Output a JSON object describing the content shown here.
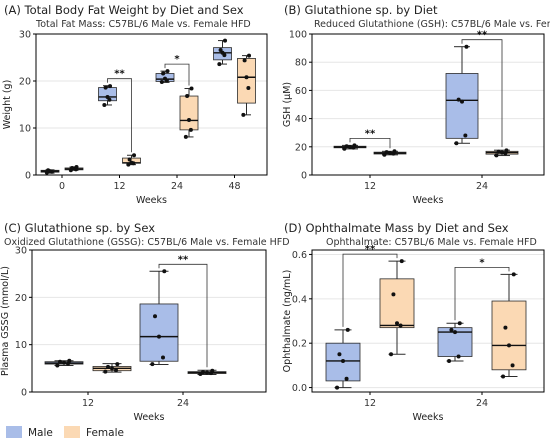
{
  "colors": {
    "male": "#a9bde8",
    "male_edge": "#2b2b2b",
    "female": "#fbd9b4",
    "female_edge": "#2b2b2b"
  },
  "legend": {
    "position": "bottom-left",
    "items": [
      {
        "label": "Male",
        "color": "#a9bde8"
      },
      {
        "label": "Female",
        "color": "#fbd9b4"
      }
    ]
  },
  "chart_data": [
    {
      "type": "box",
      "title": "(A) Total Body Fat Weight by Diet and Sex",
      "subtitle": "Total Fat Mass: C57BL/6 Male vs. Female HFD",
      "xlabel": "Weeks",
      "ylabel": "Weight (g)",
      "categories": [
        "0",
        "12",
        "24",
        "48"
      ],
      "ylim": [
        0,
        30
      ],
      "yticks": [
        0,
        10,
        20,
        30
      ],
      "series": [
        {
          "name": "Male",
          "boxes": [
            {
              "min": 0.4,
              "q1": 0.6,
              "median": 0.8,
              "q3": 1.0,
              "max": 1.1,
              "points": [
                0.5,
                0.7,
                0.8,
                1.0
              ]
            },
            {
              "min": 14.9,
              "q1": 15.8,
              "median": 16.6,
              "q3": 18.6,
              "max": 19.0,
              "points": [
                14.9,
                16.0,
                16.6,
                18.6,
                18.9
              ]
            },
            {
              "min": 19.7,
              "q1": 19.9,
              "median": 20.4,
              "q3": 21.6,
              "max": 22.1,
              "points": [
                19.8,
                20.1,
                20.5,
                21.6,
                22.1
              ]
            },
            {
              "min": 23.6,
              "q1": 24.5,
              "median": 26.0,
              "q3": 27.1,
              "max": 28.6,
              "points": [
                23.6,
                25.5,
                26.0,
                26.6,
                28.6
              ]
            }
          ]
        },
        {
          "name": "Female",
          "boxes": [
            {
              "min": 1.0,
              "q1": 1.1,
              "median": 1.3,
              "q3": 1.5,
              "max": 1.7,
              "points": [
                1.0,
                1.2,
                1.4,
                1.5,
                1.7
              ]
            },
            {
              "min": 2.2,
              "q1": 2.5,
              "median": 2.6,
              "q3": 3.6,
              "max": 4.2,
              "points": [
                2.2,
                2.5,
                2.6,
                3.3,
                4.2
              ]
            },
            {
              "min": 8.1,
              "q1": 9.6,
              "median": 11.6,
              "q3": 16.8,
              "max": 18.4,
              "points": [
                8.1,
                9.6,
                11.7,
                16.8,
                18.4
              ]
            },
            {
              "min": 12.8,
              "q1": 15.3,
              "median": 20.8,
              "q3": 24.8,
              "max": 25.4,
              "points": [
                12.8,
                18.5,
                20.8,
                24.4,
                25.4
              ]
            }
          ]
        }
      ],
      "significance": [
        {
          "group": "12",
          "label": "**"
        },
        {
          "group": "24",
          "label": "*"
        }
      ]
    },
    {
      "type": "box",
      "title": "(B) Glutathione sp. by Diet",
      "subtitle": "Reduced Glutathione (GSH): C57BL/6 Male vs. Female HFD",
      "xlabel": "Weeks",
      "ylabel": "GSH (μM)",
      "categories": [
        "12",
        "24"
      ],
      "ylim": [
        0,
        100
      ],
      "yticks": [
        0,
        20,
        40,
        60,
        80,
        100
      ],
      "series": [
        {
          "name": "Male",
          "boxes": [
            {
              "min": 18.5,
              "q1": 19.3,
              "median": 19.8,
              "q3": 20.4,
              "max": 21.0,
              "points": [
                18.6,
                19.4,
                19.9,
                20.4,
                21.0
              ]
            },
            {
              "min": 22.5,
              "q1": 26.0,
              "median": 53.0,
              "q3": 72.0,
              "max": 91.0,
              "points": [
                22.5,
                28.0,
                52.0,
                53.5,
                91.0
              ]
            }
          ]
        },
        {
          "name": "Female",
          "boxes": [
            {
              "min": 14.3,
              "q1": 14.9,
              "median": 15.5,
              "q3": 16.2,
              "max": 16.8,
              "points": [
                14.4,
                15.2,
                15.6,
                16.2,
                16.8
              ]
            },
            {
              "min": 13.8,
              "q1": 14.8,
              "median": 15.9,
              "q3": 16.8,
              "max": 17.6,
              "points": [
                13.9,
                15.3,
                16.0,
                16.5,
                17.5
              ]
            }
          ]
        }
      ],
      "significance": [
        {
          "group": "12",
          "label": "**"
        },
        {
          "group": "24",
          "label": "**"
        }
      ]
    },
    {
      "type": "box",
      "title": "(C) Glutathione sp. by Sex",
      "subtitle": "Oxidized Glutathione (GSSG): C57BL/6 Male vs. Female HFD",
      "xlabel": "Weeks",
      "ylabel": "Plasma GSSG (mmol/L)",
      "categories": [
        "12",
        "24"
      ],
      "ylim": [
        0,
        30
      ],
      "yticks": [
        0,
        10,
        20,
        30
      ],
      "series": [
        {
          "name": "Male",
          "boxes": [
            {
              "min": 5.6,
              "q1": 5.9,
              "median": 6.1,
              "q3": 6.4,
              "max": 6.6,
              "points": [
                5.6,
                6.0,
                6.2,
                6.4,
                6.6
              ]
            },
            {
              "min": 5.8,
              "q1": 6.5,
              "median": 11.7,
              "q3": 18.6,
              "max": 25.5,
              "points": [
                5.9,
                7.3,
                11.7,
                16.0,
                25.5
              ]
            }
          ]
        },
        {
          "name": "Female",
          "boxes": [
            {
              "min": 4.2,
              "q1": 4.5,
              "median": 5.0,
              "q3": 5.4,
              "max": 6.0,
              "points": [
                4.3,
                4.6,
                5.0,
                5.3,
                5.9
              ]
            },
            {
              "min": 3.7,
              "q1": 3.9,
              "median": 4.1,
              "q3": 4.3,
              "max": 4.6,
              "points": [
                3.8,
                4.0,
                4.1,
                4.2,
                4.5
              ]
            }
          ]
        }
      ],
      "significance": [
        {
          "group": "24",
          "label": "**"
        }
      ]
    },
    {
      "type": "box",
      "title": "(D) Ophthalmate Mass by Diet and Sex",
      "subtitle": "Ophthalmate: C57BL/6 Male vs. Female HFD",
      "xlabel": "Weeks",
      "ylabel": "Ophthalmate (ng/mL)",
      "categories": [
        "12",
        "24"
      ],
      "ylim": [
        -0.02,
        0.62
      ],
      "yticks": [
        0.0,
        0.2,
        0.4,
        0.6
      ],
      "series": [
        {
          "name": "Male",
          "boxes": [
            {
              "min": 0.0,
              "q1": 0.03,
              "median": 0.12,
              "q3": 0.2,
              "max": 0.26,
              "points": [
                0.0,
                0.04,
                0.12,
                0.15,
                0.26
              ]
            },
            {
              "min": 0.12,
              "q1": 0.14,
              "median": 0.25,
              "q3": 0.27,
              "max": 0.29,
              "points": [
                0.12,
                0.14,
                0.25,
                0.26,
                0.29
              ]
            }
          ]
        },
        {
          "name": "Female",
          "boxes": [
            {
              "min": 0.15,
              "q1": 0.27,
              "median": 0.28,
              "q3": 0.49,
              "max": 0.57,
              "points": [
                0.15,
                0.28,
                0.29,
                0.42,
                0.57
              ]
            },
            {
              "min": 0.05,
              "q1": 0.08,
              "median": 0.19,
              "q3": 0.39,
              "max": 0.51,
              "points": [
                0.05,
                0.1,
                0.19,
                0.27,
                0.51
              ]
            }
          ]
        }
      ],
      "significance": [
        {
          "group": "12",
          "label": "**"
        },
        {
          "group": "24",
          "label": "*"
        }
      ]
    }
  ]
}
